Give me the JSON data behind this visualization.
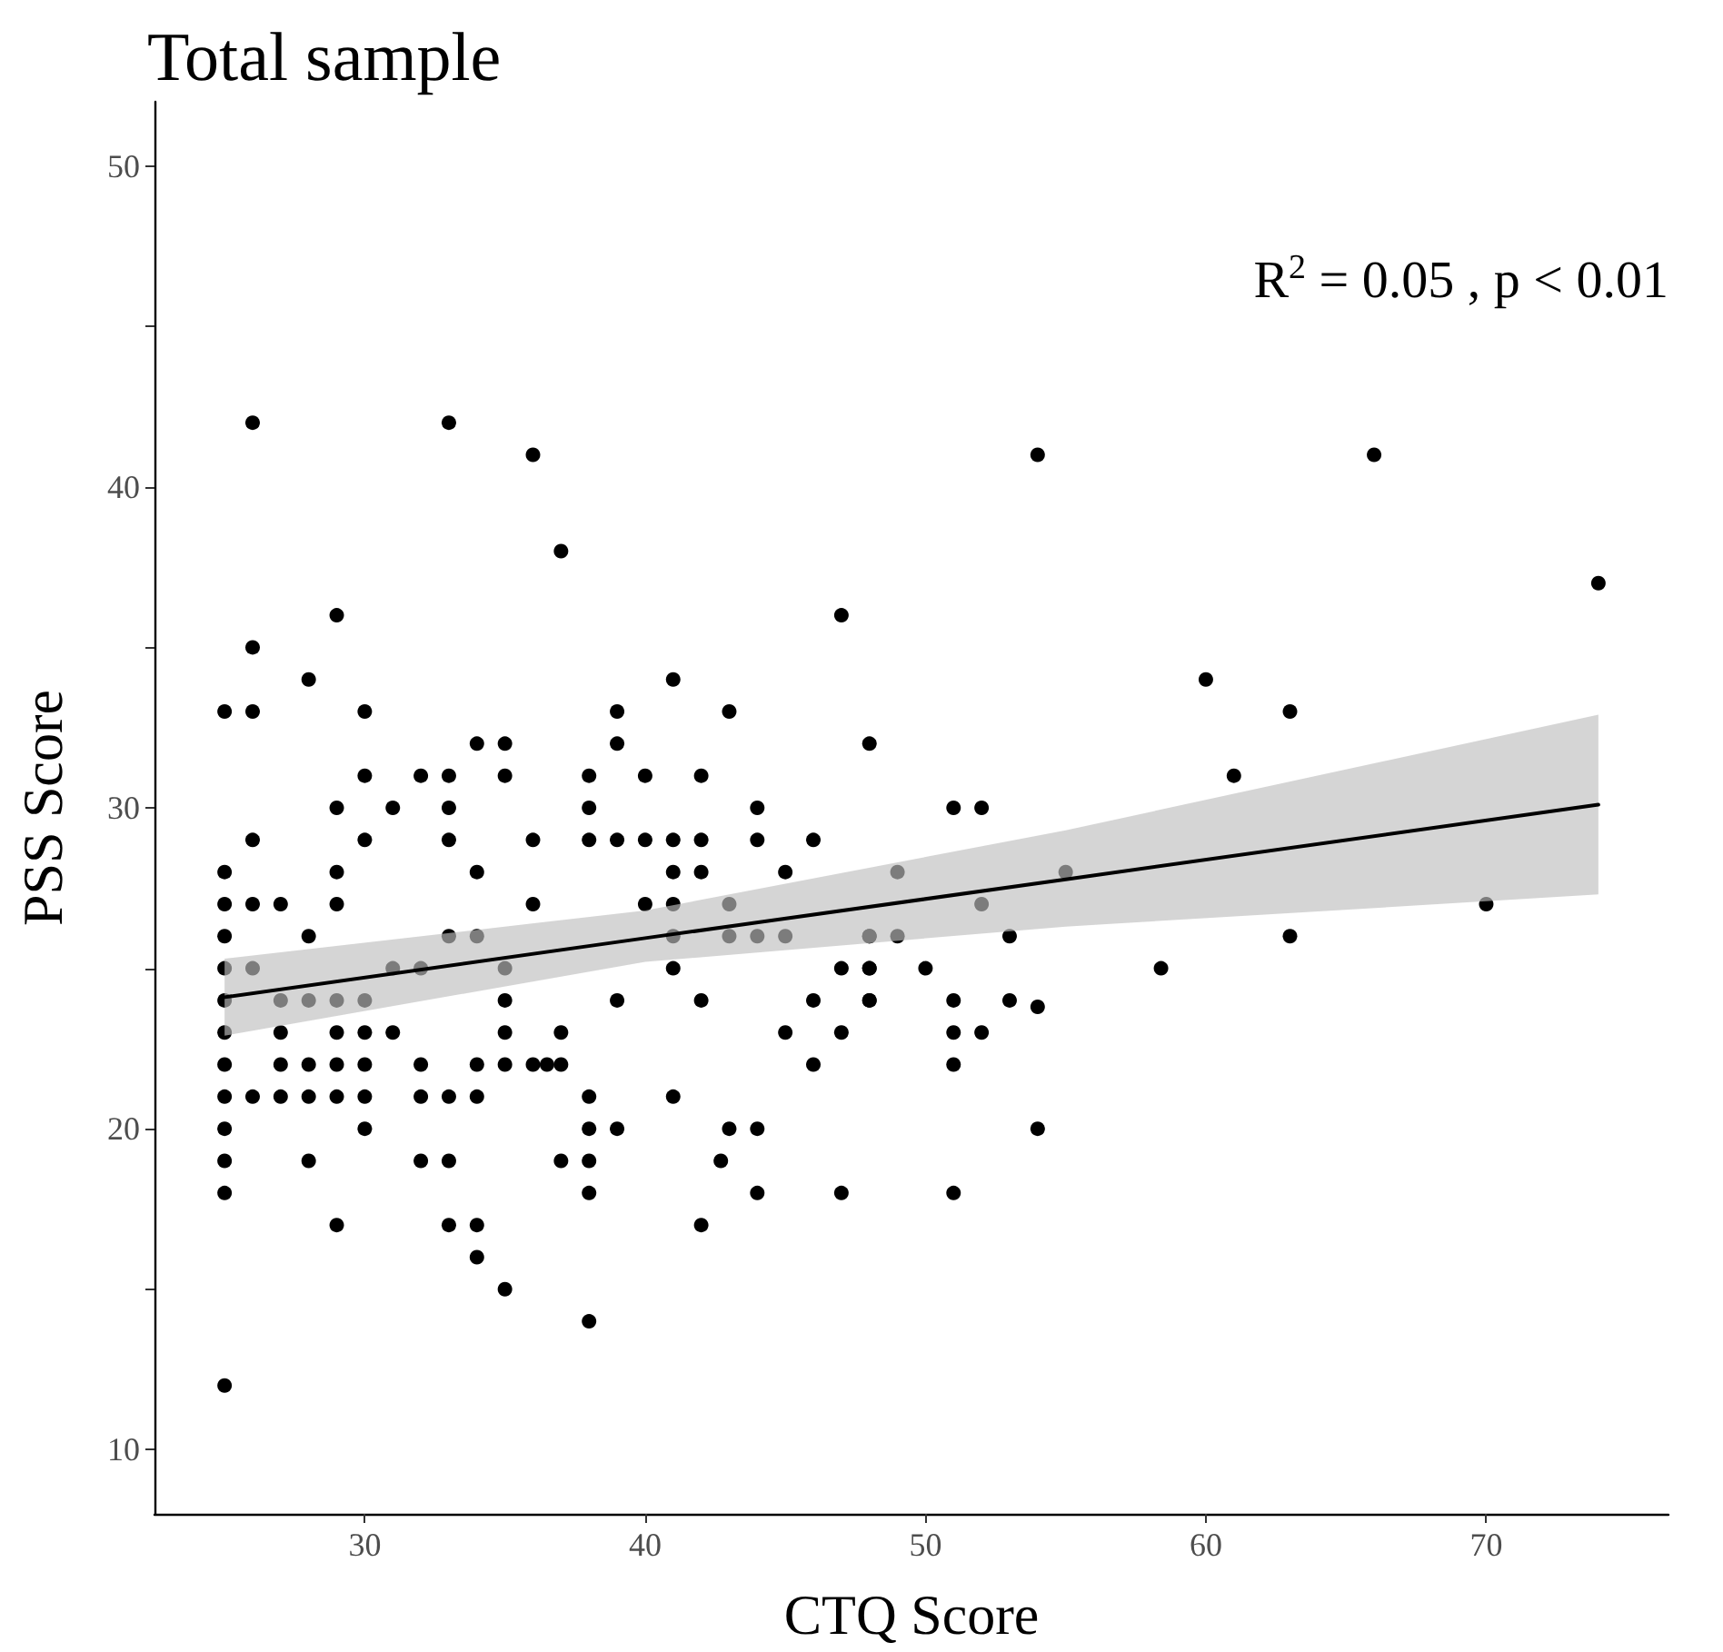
{
  "chart_data": {
    "type": "scatter",
    "title": "Total sample",
    "xlabel": "CTQ Score",
    "ylabel": "PSS Score",
    "annotations": [
      "R$^{2}$ = 0.05 , p < 0.01"
    ],
    "xlim": [
      22.5,
      76.5
    ],
    "xticks": [
      30,
      40,
      50,
      60,
      70
    ],
    "ylim": [
      8,
      52
    ],
    "yticks": [
      10,
      {
        "value": 15,
        "label": null
      },
      20,
      {
        "value": 25,
        "label": null
      },
      30,
      {
        "value": 35,
        "label": null
      },
      40,
      {
        "value": 45,
        "label": null
      },
      50
    ],
    "grid": false,
    "marker": "circle",
    "series": [
      {
        "color": "#000000",
        "x": [
          26,
          33,
          36,
          54,
          66,
          74,
          37,
          47,
          29,
          26,
          28,
          41,
          25,
          26,
          30,
          39,
          43,
          63,
          34,
          35,
          39,
          48,
          60,
          30,
          32,
          33,
          35,
          38,
          40,
          42,
          61,
          29,
          31,
          33,
          38,
          44,
          51,
          52,
          26,
          30,
          33,
          36,
          38,
          39,
          40,
          41,
          42,
          44,
          46,
          25,
          29,
          34,
          41,
          42,
          45,
          49,
          55,
          25,
          26,
          27,
          29,
          36,
          40,
          41,
          43,
          52,
          70,
          25,
          28,
          33,
          34,
          41,
          43,
          44,
          45,
          48,
          48,
          49,
          53,
          63,
          25,
          26,
          31,
          32,
          35,
          41,
          47,
          48,
          48,
          50,
          58.4,
          25,
          27,
          28,
          29,
          30,
          35,
          39,
          42,
          46,
          48,
          48,
          51,
          53,
          54,
          25,
          27,
          29,
          30,
          31,
          35,
          37,
          45,
          47,
          51,
          52,
          25,
          27,
          28,
          29,
          30,
          32,
          34,
          35,
          36,
          36.5,
          37,
          46,
          51,
          25,
          26,
          27,
          28,
          29,
          30,
          32,
          33,
          34,
          38,
          41,
          25,
          30,
          38,
          39,
          43,
          44,
          54,
          25,
          28,
          32,
          33,
          37,
          38,
          42.7,
          25,
          38,
          44,
          47,
          51,
          29,
          33,
          34,
          42,
          34,
          35,
          38,
          25
        ],
        "values": [
          42,
          42,
          41,
          41,
          41,
          37,
          38,
          36,
          36,
          35,
          34,
          34,
          33,
          33,
          33,
          33,
          33,
          33,
          32,
          32,
          32,
          32,
          34,
          31,
          31,
          31,
          31,
          31,
          31,
          31,
          31,
          30,
          30,
          30,
          30,
          30,
          30,
          30,
          29,
          29,
          29,
          29,
          29,
          29,
          29,
          29,
          29,
          29,
          29,
          28,
          28,
          28,
          28,
          28,
          28,
          28,
          28,
          27,
          27,
          27,
          27,
          27,
          27,
          27,
          27,
          27,
          27,
          26,
          26,
          26,
          26,
          26,
          26,
          26,
          26,
          26,
          26,
          26,
          26,
          26,
          25,
          25,
          25,
          25,
          25,
          25,
          25,
          25,
          25,
          25,
          25,
          24,
          24,
          24,
          24,
          24,
          24,
          24,
          24,
          24,
          24,
          24,
          24,
          24,
          23.8,
          23,
          23,
          23,
          23,
          23,
          23,
          23,
          23,
          23,
          23,
          23,
          22,
          22,
          22,
          22,
          22,
          22,
          22,
          22,
          22,
          22,
          22,
          22,
          22,
          21,
          21,
          21,
          21,
          21,
          21,
          21,
          21,
          21,
          21,
          21,
          20,
          20,
          20,
          20,
          20,
          20,
          20,
          19,
          19,
          19,
          19,
          19,
          19,
          19,
          18,
          18,
          18,
          18,
          18,
          17,
          17,
          17,
          17,
          16,
          15,
          14,
          12
        ]
      },
      {
        "type": "line",
        "marker": "none",
        "color": "#000000",
        "x": [
          25,
          40,
          55,
          74
        ],
        "values": [
          24.1,
          25.94,
          27.77,
          30.1
        ],
        "lower": [
          22.9,
          25.2,
          26.3,
          27.3
        ],
        "upper": [
          25.3,
          26.8,
          29.3,
          32.9
        ]
      }
    ]
  }
}
